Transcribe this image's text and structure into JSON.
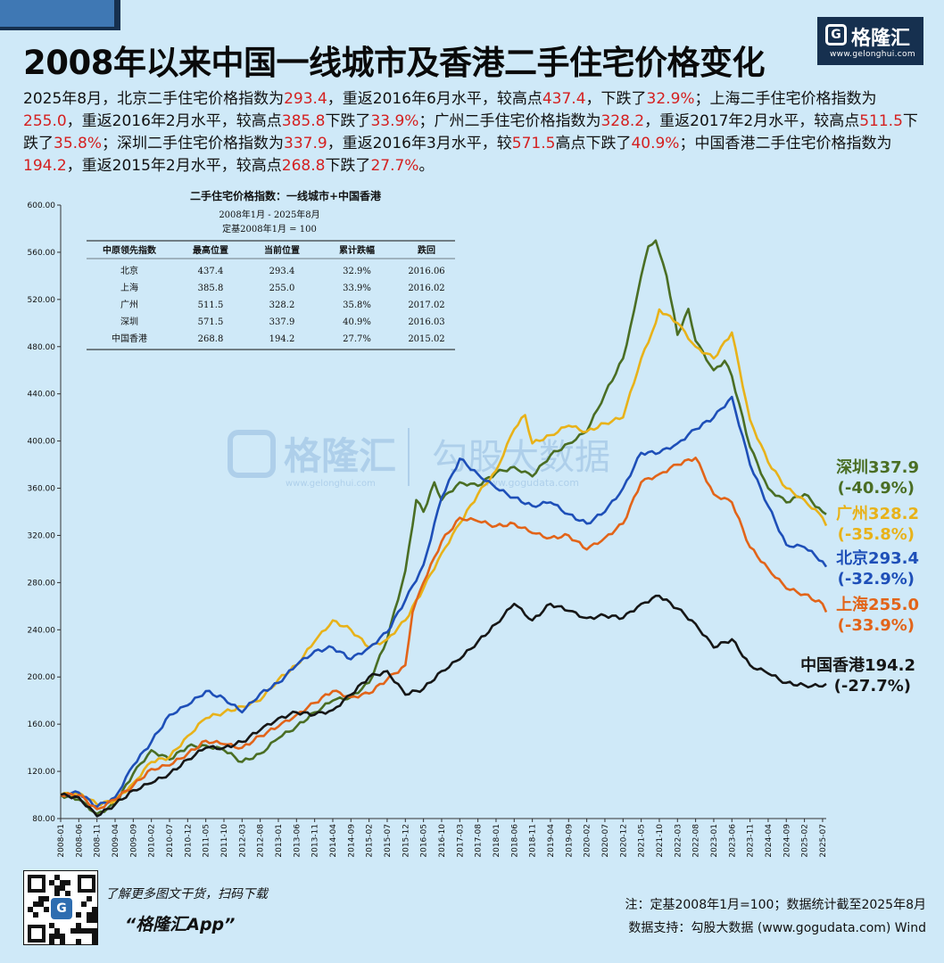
{
  "title": "2008年以来中国一线城市及香港二手住宅价格变化",
  "brand": {
    "name": "格隆汇",
    "url": "www.gelonghui.com",
    "glyph": "G"
  },
  "summary": [
    {
      "t": "2025年8月，北京二手住宅价格指数为"
    },
    {
      "t": "293.4",
      "red": true
    },
    {
      "t": "，重返2016年6月水平，较高点"
    },
    {
      "t": "437.4",
      "red": true
    },
    {
      "t": "，下跌了"
    },
    {
      "t": "32.9%",
      "red": true
    },
    {
      "t": "；上海二手住宅价格指数为"
    },
    {
      "t": "255.0",
      "red": true
    },
    {
      "t": "，重返2016年2月水平，较高点"
    },
    {
      "t": "385.8",
      "red": true
    },
    {
      "t": "下跌了"
    },
    {
      "t": "33.9%",
      "red": true
    },
    {
      "t": "；广州二手住宅价格指数为"
    },
    {
      "t": "328.2",
      "red": true
    },
    {
      "t": "，重返2017年2月水平，较高点"
    },
    {
      "t": "511.5",
      "red": true
    },
    {
      "t": "下跌了"
    },
    {
      "t": "35.8%",
      "red": true
    },
    {
      "t": "；深圳二手住宅价格指数为"
    },
    {
      "t": "337.9",
      "red": true
    },
    {
      "t": "，重返2016年3月水平，较"
    },
    {
      "t": "571.5",
      "red": true
    },
    {
      "t": "高点下跌了"
    },
    {
      "t": "40.9%",
      "red": true
    },
    {
      "t": "；中国香港二手住宅价格指数为"
    },
    {
      "t": "194.2",
      "red": true
    },
    {
      "t": "，重返2015年2月水平，较高点"
    },
    {
      "t": "268.8",
      "red": true
    },
    {
      "t": "下跌了"
    },
    {
      "t": "27.7%",
      "red": true
    },
    {
      "t": "。"
    }
  ],
  "watermark": {
    "left": "格隆汇",
    "left_url": "www.gelonghui.com",
    "right": "勾股大数据",
    "right_url": "www.gogudata.com"
  },
  "chart_data": {
    "type": "line",
    "ylim": [
      80,
      600
    ],
    "yticks": [
      "80.00",
      "120.00",
      "160.00",
      "200.00",
      "240.00",
      "280.00",
      "320.00",
      "360.00",
      "400.00",
      "440.00",
      "480.00",
      "520.00",
      "560.00",
      "600.00"
    ],
    "xlim": [
      "2008-01",
      "2025-08"
    ],
    "xticks": [
      "2008-01",
      "2008-06",
      "2008-11",
      "2009-04",
      "2009-09",
      "2010-02",
      "2010-07",
      "2010-12",
      "2011-05",
      "2011-10",
      "2012-03",
      "2012-08",
      "2013-01",
      "2013-06",
      "2013-11",
      "2014-04",
      "2014-09",
      "2015-02",
      "2015-07",
      "2015-12",
      "2016-05",
      "2016-10",
      "2017-03",
      "2017-08",
      "2018-01",
      "2018-06",
      "2018-11",
      "2019-04",
      "2019-09",
      "2020-02",
      "2020-07",
      "2020-12",
      "2021-05",
      "2021-10",
      "2022-03",
      "2022-08",
      "2023-01",
      "2023-06",
      "2023-11",
      "2024-04",
      "2024-09",
      "2025-02",
      "2025-07"
    ],
    "series": [
      {
        "name": "深圳",
        "color": "#4a6e24",
        "label": "深圳337.9",
        "change": "(-40.9%)",
        "points": [
          [
            "2008-01",
            100
          ],
          [
            "2008-06",
            96
          ],
          [
            "2008-11",
            84
          ],
          [
            "2009-04",
            92
          ],
          [
            "2009-09",
            118
          ],
          [
            "2010-02",
            138
          ],
          [
            "2010-07",
            130
          ],
          [
            "2010-12",
            141
          ],
          [
            "2011-05",
            142
          ],
          [
            "2011-10",
            138
          ],
          [
            "2012-03",
            128
          ],
          [
            "2012-08",
            135
          ],
          [
            "2013-01",
            148
          ],
          [
            "2013-06",
            158
          ],
          [
            "2013-11",
            170
          ],
          [
            "2014-04",
            180
          ],
          [
            "2014-09",
            183
          ],
          [
            "2015-02",
            195
          ],
          [
            "2015-07",
            232
          ],
          [
            "2015-12",
            290
          ],
          [
            "2016-03",
            350
          ],
          [
            "2016-05",
            340
          ],
          [
            "2016-08",
            365
          ],
          [
            "2016-10",
            350
          ],
          [
            "2017-03",
            365
          ],
          [
            "2017-08",
            362
          ],
          [
            "2018-01",
            373
          ],
          [
            "2018-06",
            378
          ],
          [
            "2018-11",
            370
          ],
          [
            "2019-04",
            388
          ],
          [
            "2019-09",
            398
          ],
          [
            "2020-02",
            408
          ],
          [
            "2020-07",
            440
          ],
          [
            "2020-12",
            470
          ],
          [
            "2021-03",
            510
          ],
          [
            "2021-05",
            540
          ],
          [
            "2021-07",
            565
          ],
          [
            "2021-09",
            570
          ],
          [
            "2021-10",
            560
          ],
          [
            "2021-12",
            540
          ],
          [
            "2022-03",
            490
          ],
          [
            "2022-06",
            512
          ],
          [
            "2022-08",
            485
          ],
          [
            "2023-01",
            460
          ],
          [
            "2023-04",
            468
          ],
          [
            "2023-06",
            455
          ],
          [
            "2023-11",
            395
          ],
          [
            "2024-04",
            360
          ],
          [
            "2024-09",
            348
          ],
          [
            "2025-02",
            355
          ],
          [
            "2025-07",
            340
          ],
          [
            "2025-08",
            337.9
          ]
        ]
      },
      {
        "name": "广州",
        "color": "#e8b219",
        "label": "广州328.2",
        "change": "(-35.8%)",
        "points": [
          [
            "2008-01",
            100
          ],
          [
            "2008-06",
            102
          ],
          [
            "2008-11",
            92
          ],
          [
            "2009-04",
            95
          ],
          [
            "2009-09",
            110
          ],
          [
            "2010-02",
            128
          ],
          [
            "2010-07",
            132
          ],
          [
            "2010-12",
            150
          ],
          [
            "2011-05",
            165
          ],
          [
            "2011-10",
            170
          ],
          [
            "2012-03",
            175
          ],
          [
            "2012-08",
            180
          ],
          [
            "2013-01",
            198
          ],
          [
            "2013-06",
            210
          ],
          [
            "2013-11",
            230
          ],
          [
            "2014-04",
            248
          ],
          [
            "2014-09",
            240
          ],
          [
            "2015-02",
            225
          ],
          [
            "2015-07",
            232
          ],
          [
            "2015-12",
            248
          ],
          [
            "2016-05",
            275
          ],
          [
            "2016-10",
            305
          ],
          [
            "2017-03",
            330
          ],
          [
            "2017-08",
            355
          ],
          [
            "2018-01",
            375
          ],
          [
            "2018-06",
            410
          ],
          [
            "2018-09",
            422
          ],
          [
            "2018-11",
            398
          ],
          [
            "2019-04",
            405
          ],
          [
            "2019-09",
            413
          ],
          [
            "2020-02",
            408
          ],
          [
            "2020-07",
            415
          ],
          [
            "2020-12",
            420
          ],
          [
            "2021-05",
            470
          ],
          [
            "2021-09",
            500
          ],
          [
            "2021-10",
            511.5
          ],
          [
            "2022-03",
            500
          ],
          [
            "2022-08",
            480
          ],
          [
            "2023-01",
            470
          ],
          [
            "2023-06",
            492
          ],
          [
            "2023-11",
            418
          ],
          [
            "2024-04",
            382
          ],
          [
            "2024-09",
            360
          ],
          [
            "2025-02",
            350
          ],
          [
            "2025-07",
            335
          ],
          [
            "2025-08",
            328.2
          ]
        ]
      },
      {
        "name": "北京",
        "color": "#1e4fb8",
        "label": "北京293.4",
        "change": "(-32.9%)",
        "points": [
          [
            "2008-01",
            100
          ],
          [
            "2008-06",
            102
          ],
          [
            "2008-11",
            90
          ],
          [
            "2009-04",
            98
          ],
          [
            "2009-09",
            125
          ],
          [
            "2010-02",
            145
          ],
          [
            "2010-07",
            168
          ],
          [
            "2010-12",
            176
          ],
          [
            "2011-05",
            188
          ],
          [
            "2011-10",
            182
          ],
          [
            "2012-03",
            170
          ],
          [
            "2012-08",
            186
          ],
          [
            "2013-01",
            195
          ],
          [
            "2013-06",
            210
          ],
          [
            "2013-11",
            222
          ],
          [
            "2014-04",
            225
          ],
          [
            "2014-09",
            215
          ],
          [
            "2015-02",
            225
          ],
          [
            "2015-07",
            238
          ],
          [
            "2015-12",
            265
          ],
          [
            "2016-05",
            295
          ],
          [
            "2016-10",
            352
          ],
          [
            "2017-03",
            385
          ],
          [
            "2017-08",
            372
          ],
          [
            "2018-01",
            360
          ],
          [
            "2018-06",
            352
          ],
          [
            "2018-11",
            345
          ],
          [
            "2019-04",
            348
          ],
          [
            "2019-09",
            338
          ],
          [
            "2020-02",
            330
          ],
          [
            "2020-07",
            340
          ],
          [
            "2020-12",
            360
          ],
          [
            "2021-05",
            390
          ],
          [
            "2021-10",
            390
          ],
          [
            "2022-03",
            398
          ],
          [
            "2022-08",
            410
          ],
          [
            "2023-01",
            420
          ],
          [
            "2023-06",
            437.4
          ],
          [
            "2023-11",
            380
          ],
          [
            "2024-04",
            345
          ],
          [
            "2024-09",
            312
          ],
          [
            "2025-02",
            310
          ],
          [
            "2025-07",
            298
          ],
          [
            "2025-08",
            293.4
          ]
        ]
      },
      {
        "name": "上海",
        "color": "#e26419",
        "label": "上海255.0",
        "change": "(-33.9%)",
        "points": [
          [
            "2008-01",
            100
          ],
          [
            "2008-06",
            100
          ],
          [
            "2008-11",
            88
          ],
          [
            "2009-04",
            96
          ],
          [
            "2009-09",
            108
          ],
          [
            "2010-02",
            122
          ],
          [
            "2010-07",
            125
          ],
          [
            "2010-12",
            135
          ],
          [
            "2011-05",
            146
          ],
          [
            "2011-10",
            143
          ],
          [
            "2012-03",
            140
          ],
          [
            "2012-08",
            150
          ],
          [
            "2013-01",
            158
          ],
          [
            "2013-06",
            168
          ],
          [
            "2013-11",
            178
          ],
          [
            "2014-04",
            188
          ],
          [
            "2014-09",
            183
          ],
          [
            "2015-02",
            186
          ],
          [
            "2015-07",
            198
          ],
          [
            "2015-12",
            210
          ],
          [
            "2016-02",
            255
          ],
          [
            "2016-05",
            280
          ],
          [
            "2016-10",
            315
          ],
          [
            "2017-03",
            335
          ],
          [
            "2017-08",
            332
          ],
          [
            "2018-01",
            328
          ],
          [
            "2018-06",
            330
          ],
          [
            "2018-11",
            322
          ],
          [
            "2019-04",
            318
          ],
          [
            "2019-09",
            320
          ],
          [
            "2020-02",
            308
          ],
          [
            "2020-07",
            318
          ],
          [
            "2020-12",
            330
          ],
          [
            "2021-05",
            365
          ],
          [
            "2021-10",
            372
          ],
          [
            "2022-03",
            380
          ],
          [
            "2022-08",
            385.8
          ],
          [
            "2023-01",
            355
          ],
          [
            "2023-06",
            348
          ],
          [
            "2023-11",
            310
          ],
          [
            "2024-04",
            292
          ],
          [
            "2024-09",
            275
          ],
          [
            "2025-02",
            270
          ],
          [
            "2025-07",
            262
          ],
          [
            "2025-08",
            255.0
          ]
        ]
      },
      {
        "name": "中国香港",
        "color": "#161616",
        "label": "中国香港194.2",
        "change": "(-27.7%)",
        "points": [
          [
            "2008-01",
            100
          ],
          [
            "2008-06",
            98
          ],
          [
            "2008-11",
            82
          ],
          [
            "2009-04",
            92
          ],
          [
            "2009-09",
            104
          ],
          [
            "2010-02",
            110
          ],
          [
            "2010-07",
            118
          ],
          [
            "2010-12",
            130
          ],
          [
            "2011-05",
            140
          ],
          [
            "2011-10",
            140
          ],
          [
            "2012-03",
            145
          ],
          [
            "2012-08",
            155
          ],
          [
            "2013-01",
            165
          ],
          [
            "2013-06",
            170
          ],
          [
            "2013-11",
            168
          ],
          [
            "2014-04",
            172
          ],
          [
            "2014-09",
            185
          ],
          [
            "2015-02",
            200
          ],
          [
            "2015-07",
            205
          ],
          [
            "2015-12",
            185
          ],
          [
            "2016-05",
            190
          ],
          [
            "2016-10",
            205
          ],
          [
            "2017-03",
            215
          ],
          [
            "2017-08",
            230
          ],
          [
            "2018-01",
            245
          ],
          [
            "2018-06",
            262
          ],
          [
            "2018-11",
            248
          ],
          [
            "2019-04",
            262
          ],
          [
            "2019-09",
            256
          ],
          [
            "2020-02",
            250
          ],
          [
            "2020-07",
            252
          ],
          [
            "2020-12",
            250
          ],
          [
            "2021-05",
            262
          ],
          [
            "2021-10",
            268.8
          ],
          [
            "2022-03",
            258
          ],
          [
            "2022-08",
            245
          ],
          [
            "2023-01",
            225
          ],
          [
            "2023-06",
            232
          ],
          [
            "2023-11",
            210
          ],
          [
            "2024-04",
            203
          ],
          [
            "2024-09",
            195
          ],
          [
            "2025-02",
            193
          ],
          [
            "2025-07",
            192
          ],
          [
            "2025-08",
            194.2
          ]
        ]
      }
    ],
    "table": {
      "title": "二手住宅价格指数：一线城市+中国香港",
      "subtitle1": "2008年1月 - 2025年8月",
      "subtitle2": "定基2008年1月 = 100",
      "headers": [
        "中原领先指数",
        "最高位置",
        "当前位置",
        "累计跌幅",
        "跌回"
      ],
      "rows": [
        [
          "北京",
          "437.4",
          "293.4",
          "32.9%",
          "2016.06"
        ],
        [
          "上海",
          "385.8",
          "255.0",
          "33.9%",
          "2016.02"
        ],
        [
          "广州",
          "511.5",
          "328.2",
          "35.8%",
          "2017.02"
        ],
        [
          "深圳",
          "571.5",
          "337.9",
          "40.9%",
          "2016.03"
        ],
        [
          "中国香港",
          "268.8",
          "194.2",
          "27.7%",
          "2015.02"
        ]
      ]
    }
  },
  "footer": {
    "promo_line1": "了解更多图文干货，扫码下载",
    "promo_line2": "“格隆汇App”",
    "note": "注：定基2008年1月=100；数据统计截至2025年8月",
    "source": "数据支持：勾股大数据 (www.gogudata.com) Wind",
    "qr_glyph": "G"
  }
}
